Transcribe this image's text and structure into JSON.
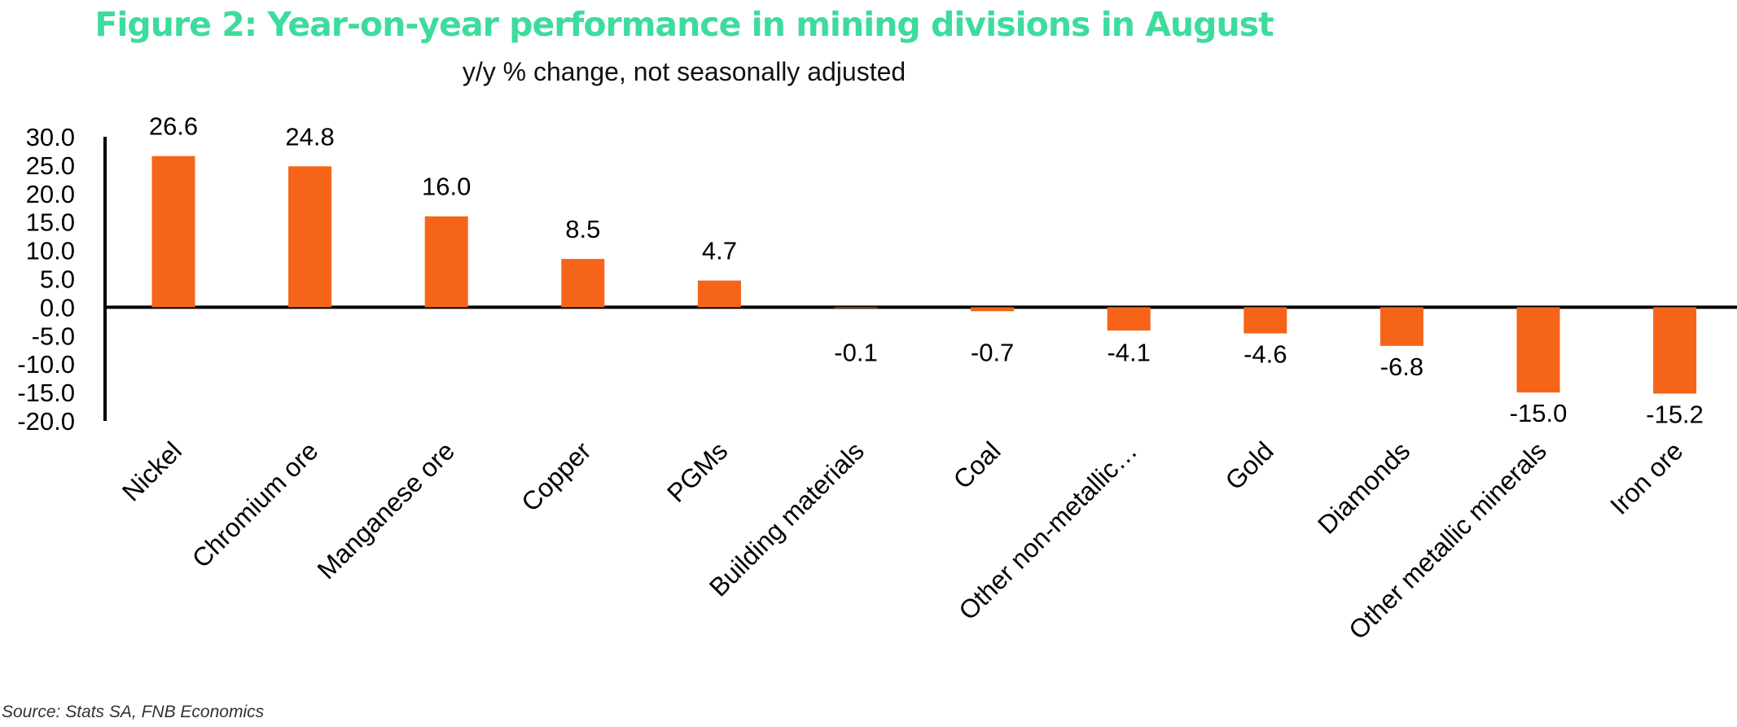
{
  "colors": {
    "title": "#3ddc9c",
    "bar": "#f66419",
    "axis": "#000000",
    "text": "#000000"
  },
  "chart_data": {
    "type": "bar",
    "title": "Figure 2: Year-on-year performance in mining divisions in August",
    "subtitle": "y/y % change, not seasonally adjusted",
    "xlabel": "",
    "ylabel": "",
    "categories": [
      "Nickel",
      "Chromium ore",
      "Manganese ore",
      "Copper",
      "PGMs",
      "Building materials",
      "Coal",
      "Other non-metallic…",
      "Gold",
      "Diamonds",
      "Other metallic minerals",
      "Iron ore"
    ],
    "values": [
      26.6,
      24.8,
      16.0,
      8.5,
      4.7,
      -0.1,
      -0.7,
      -4.1,
      -4.6,
      -6.8,
      -15.0,
      -15.2
    ],
    "data_labels": [
      "26.6",
      "24.8",
      "16.0",
      "8.5",
      "4.7",
      "-0.1",
      "-0.7",
      "-4.1",
      "-4.6",
      "-6.8",
      "-15.0",
      "-15.2"
    ],
    "y_ticks": [
      "30.0",
      "25.0",
      "20.0",
      "15.0",
      "10.0",
      "5.0",
      "0.0",
      "-5.0",
      "-10.0",
      "-15.0",
      "-20.0"
    ],
    "y_tick_values": [
      30,
      25,
      20,
      15,
      10,
      5,
      0,
      -5,
      -10,
      -15,
      -20
    ],
    "ylim": [
      -20,
      30
    ],
    "grid": false,
    "legend": "none"
  },
  "source": "Source: Stats SA, FNB Economics"
}
